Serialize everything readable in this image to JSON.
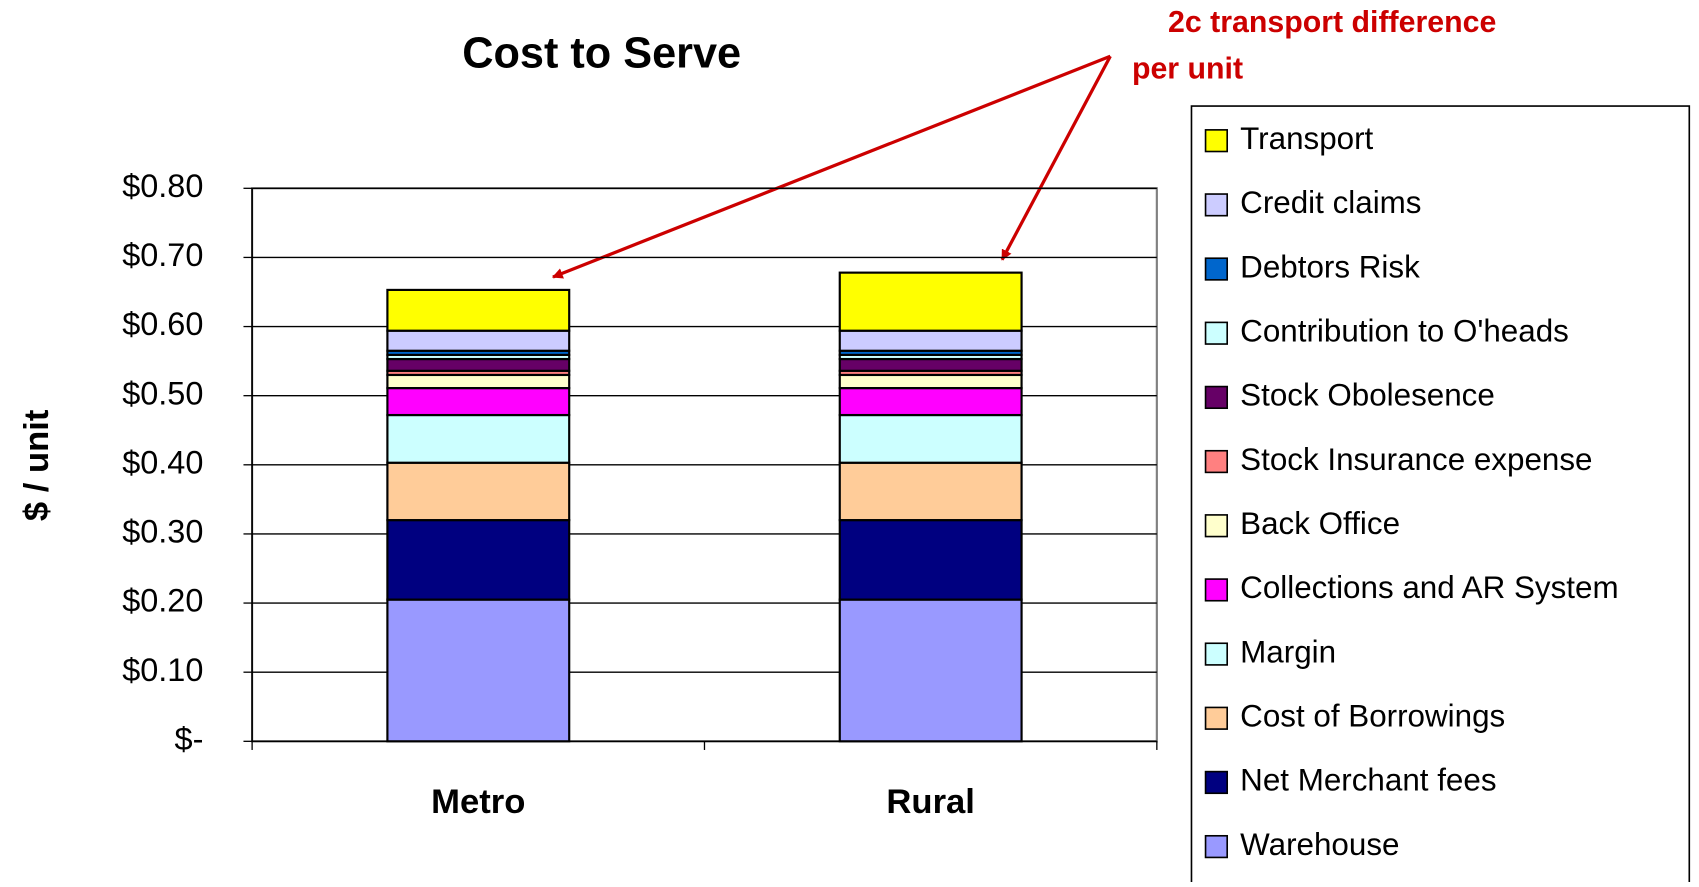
{
  "chart_data": {
    "type": "stacked_bar",
    "title": "Cost to Serve",
    "y_label": "$ / unit",
    "annotation": [
      "2c transport difference",
      "per unit"
    ],
    "categories": [
      "Metro",
      "Rural"
    ],
    "series": [
      {
        "name": "Warehouse",
        "color": "#9999ff",
        "values": [
          0.205,
          0.205
        ]
      },
      {
        "name": "Net Merchant fees",
        "color": "#000080",
        "values": [
          0.115,
          0.115
        ]
      },
      {
        "name": "Cost of Borrowings",
        "color": "#ffcc99",
        "values": [
          0.083,
          0.083
        ]
      },
      {
        "name": "Margin",
        "color": "#ccffff",
        "values": [
          0.069,
          0.069
        ]
      },
      {
        "name": "Collections and AR System",
        "color": "#ff00ff",
        "values": [
          0.039,
          0.039
        ]
      },
      {
        "name": "Back Office",
        "color": "#ffffcc",
        "values": [
          0.019,
          0.019
        ]
      },
      {
        "name": "Stock Insurance expense",
        "color": "#ff8080",
        "values": [
          0.006,
          0.006
        ]
      },
      {
        "name": "Stock Obolesence",
        "color": "#660066",
        "values": [
          0.017,
          0.017
        ]
      },
      {
        "name": "Contribution to O'heads",
        "color": "#ccffff",
        "values": [
          0.006,
          0.006
        ]
      },
      {
        "name": "Debtors Risk",
        "color": "#0066cc",
        "values": [
          0.006,
          0.006
        ]
      },
      {
        "name": "Credit claims",
        "color": "#ccccff",
        "values": [
          0.029,
          0.029
        ]
      },
      {
        "name": "Transport",
        "color": "#ffff00",
        "values": [
          0.059,
          0.084
        ]
      }
    ],
    "ylim": [
      0,
      0.8
    ],
    "yticks": [
      {
        "value": 0,
        "label": "$-"
      },
      {
        "value": 0.1,
        "label": "$0.10"
      },
      {
        "value": 0.2,
        "label": "$0.20"
      },
      {
        "value": 0.3,
        "label": "$0.30"
      },
      {
        "value": 0.4,
        "label": "$0.40"
      },
      {
        "value": 0.5,
        "label": "$0.50"
      },
      {
        "value": 0.6,
        "label": "$0.60"
      },
      {
        "value": 0.7,
        "label": "$0.70"
      },
      {
        "value": 0.8,
        "label": "$0.80"
      }
    ],
    "grid": true
  }
}
